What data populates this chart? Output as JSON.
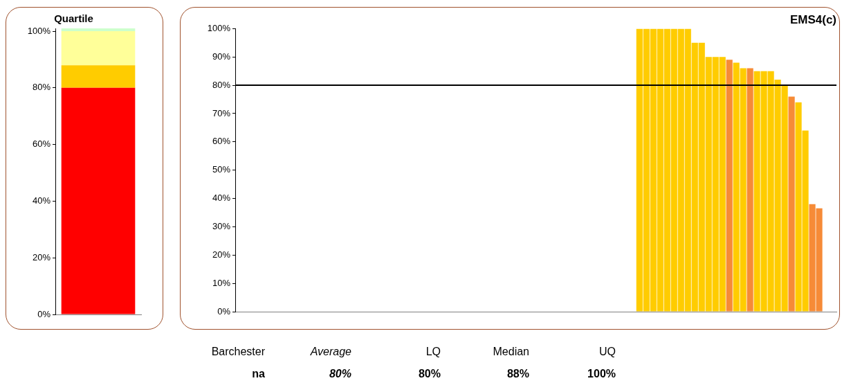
{
  "chart_data": [
    {
      "type": "bar",
      "title": "Quartile",
      "stacked": true,
      "categories": [
        null
      ],
      "series": [
        {
          "color": "#ff0000",
          "values": [
            80
          ]
        },
        {
          "color": "#ffcc00",
          "values": [
            8
          ]
        },
        {
          "color": "#ffff99",
          "values": [
            12
          ]
        },
        {
          "color": "#ccffcc",
          "values": [
            1
          ]
        }
      ],
      "ylim": [
        0,
        101
      ],
      "yticks": [
        {
          "value": 0,
          "label": "0%"
        },
        {
          "value": 20,
          "label": "20%"
        },
        {
          "value": 40,
          "label": "40%"
        },
        {
          "value": 60,
          "label": "60%"
        },
        {
          "value": 80,
          "label": "80%"
        },
        {
          "value": 100,
          "label": "100%"
        }
      ],
      "grid": false,
      "legend": false
    },
    {
      "type": "bar",
      "title": "EMS4(c)",
      "categories": [
        null,
        null,
        null,
        null,
        null,
        null,
        null,
        null,
        null,
        null,
        null,
        null,
        null,
        null,
        null,
        null,
        null,
        null,
        null,
        null,
        null,
        null,
        null,
        null,
        null,
        null,
        null,
        null,
        null,
        null,
        null,
        null,
        null,
        null,
        null,
        null,
        null,
        null,
        null,
        null,
        null,
        null,
        null,
        null,
        null,
        null,
        null,
        null,
        null,
        null,
        null,
        null,
        null,
        null,
        null,
        null,
        null,
        null,
        null,
        null,
        null,
        null,
        null,
        null,
        null,
        null,
        null,
        null,
        null,
        null,
        null,
        null,
        null,
        null,
        null,
        null,
        null,
        null,
        null,
        null,
        null,
        null,
        null,
        null,
        null,
        null,
        null
      ],
      "values": [
        null,
        null,
        null,
        null,
        null,
        null,
        null,
        null,
        null,
        null,
        null,
        null,
        null,
        null,
        null,
        null,
        null,
        null,
        null,
        null,
        null,
        null,
        null,
        null,
        null,
        null,
        null,
        null,
        null,
        null,
        null,
        null,
        null,
        null,
        null,
        null,
        null,
        null,
        null,
        null,
        null,
        null,
        null,
        null,
        null,
        null,
        null,
        null,
        null,
        null,
        null,
        null,
        null,
        null,
        null,
        null,
        null,
        null,
        100,
        100,
        100,
        100,
        100,
        100,
        100,
        100,
        95,
        95,
        90,
        90,
        90,
        89,
        88,
        86,
        86,
        85,
        85,
        85,
        82,
        80,
        76,
        74,
        64,
        38,
        36.5,
        null,
        null
      ],
      "colors": [
        "#ffcc00",
        "#ffcc00",
        "#ffcc00",
        "#ffcc00",
        "#ffcc00",
        "#ffcc00",
        "#ffcc00",
        "#ffcc00",
        "#ffcc00",
        "#ffcc00",
        "#ffcc00",
        "#ffcc00",
        "#ffcc00",
        "#ffcc00",
        "#ffcc00",
        "#ffcc00",
        "#ffcc00",
        "#ffcc00",
        "#ffcc00",
        "#ffcc00",
        "#ffcc00",
        "#ffcc00",
        "#ffcc00",
        "#ffcc00",
        "#ffcc00",
        "#ffcc00",
        "#ffcc00",
        "#ffcc00",
        "#ffcc00",
        "#ffcc00",
        "#ffcc00",
        "#ffcc00",
        "#ffcc00",
        "#ffcc00",
        "#ffcc00",
        "#ffcc00",
        "#ffcc00",
        "#ffcc00",
        "#ffcc00",
        "#ffcc00",
        "#ffcc00",
        "#ffcc00",
        "#ffcc00",
        "#ffcc00",
        "#ffcc00",
        "#ffcc00",
        "#ffcc00",
        "#ffcc00",
        "#ffcc00",
        "#ffcc00",
        "#ffcc00",
        "#ffcc00",
        "#ffcc00",
        "#ffcc00",
        "#ffcc00",
        "#ffcc00",
        "#ffcc00",
        "#ffcc00",
        "#ffcc00",
        "#ffcc00",
        "#ffcc00",
        "#ffcc00",
        "#ffcc00",
        "#ffcc00",
        "#ffcc00",
        "#ffcc00",
        "#ffcc00",
        "#ffcc00",
        "#ffcc00",
        "#ffcc00",
        "#ffcc00",
        "#f68b37",
        "#ffcc00",
        "#ffcc00",
        "#f68b37",
        "#ffcc00",
        "#ffcc00",
        "#ffcc00",
        "#ffcc00",
        "#ffcc00",
        "#f68b37",
        "#ffcc00",
        "#ffcc00",
        "#f68b37",
        "#f68b37",
        "#ffcc00",
        "#ffcc00"
      ],
      "ylim": [
        0,
        100
      ],
      "yticks": [
        {
          "value": 0,
          "label": "0%"
        },
        {
          "value": 10,
          "label": "10%"
        },
        {
          "value": 20,
          "label": "20%"
        },
        {
          "value": 30,
          "label": "30%"
        },
        {
          "value": 40,
          "label": "40%"
        },
        {
          "value": 50,
          "label": "50%"
        },
        {
          "value": 60,
          "label": "60%"
        },
        {
          "value": 70,
          "label": "70%"
        },
        {
          "value": 80,
          "label": "80%"
        },
        {
          "value": 90,
          "label": "90%"
        },
        {
          "value": 100,
          "label": "100%"
        }
      ],
      "ref_lines": [
        {
          "axis": "y",
          "value": 80,
          "color": "#000000"
        }
      ],
      "grid": false,
      "legend": false,
      "annotations": [
        "Barchester",
        "Average",
        "LQ",
        "Median",
        "UQ",
        "na",
        "80%",
        "80%",
        "88%",
        "100%"
      ]
    }
  ]
}
